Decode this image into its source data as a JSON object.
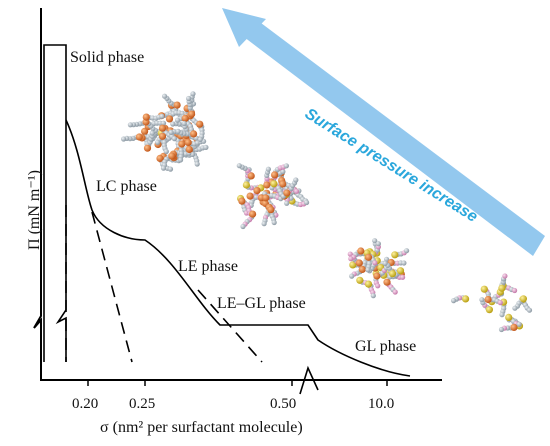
{
  "phases": {
    "solid": "Solid phase",
    "lc": "LC phase",
    "le": "LE phase",
    "legl": "LE–GL phase",
    "gl": "GL phase"
  },
  "arrow_label": "Surface pressure increase",
  "axes": {
    "y_label": "Π (mN m⁻¹)",
    "x_label": "σ (nm² per surfactant molecule)",
    "x_ticks": [
      "0.20",
      "0.25",
      "0.50",
      "10.0"
    ]
  },
  "colors": {
    "arrow": "#93c8ee",
    "arrow_text": "#2aa7dc",
    "curve": "#000000",
    "tail_carbon": "#b8c4cc",
    "head_oxygen": "#e07a2c",
    "head_sulfur": "#e0c832",
    "hydrogen_pink": "#e3a9cf"
  }
}
